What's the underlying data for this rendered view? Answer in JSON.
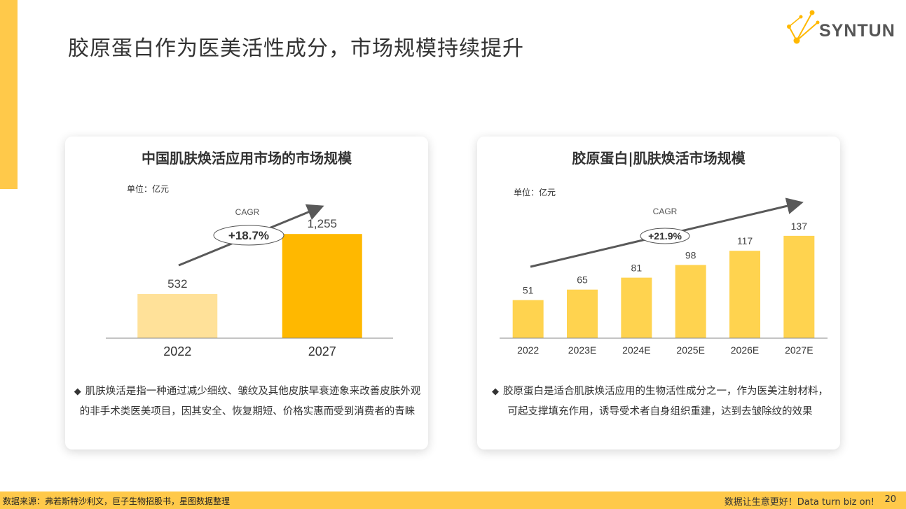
{
  "page": {
    "title": "胶原蛋白作为医美活性成分，市场规模持续提升",
    "logo_text": "SYNTUN"
  },
  "left_card": {
    "chart_data": {
      "type": "bar",
      "title": "中国肌肤焕活应用市场的市场规模",
      "unit": "单位：亿元",
      "categories": [
        "2022",
        "2027"
      ],
      "values": [
        532,
        1255
      ],
      "value_labels": [
        "532",
        "1,255"
      ],
      "colors": [
        "#FFE199",
        "#FFB800"
      ],
      "cagr_label": "CAGR",
      "cagr_value": "+18.7%",
      "ylim": [
        0,
        1400
      ]
    },
    "description": "肌肤焕活是指一种通过减少细纹、皱纹及其他皮肤早衰迹象来改善皮肤外观的非手术类医美项目，因其安全、恢复期短、价格实惠而受到消费者的青睐"
  },
  "right_card": {
    "chart_data": {
      "type": "bar",
      "title": "胶原蛋白|肌肤焕活市场规模",
      "unit": "单位：亿元",
      "categories": [
        "2022",
        "2023E",
        "2024E",
        "2025E",
        "2026E",
        "2027E"
      ],
      "values": [
        51,
        65,
        81,
        98,
        117,
        137
      ],
      "value_labels": [
        "51",
        "65",
        "81",
        "98",
        "117",
        "137"
      ],
      "colors": [
        "#FFD34F"
      ],
      "cagr_label": "CAGR",
      "cagr_value": "+21.9%",
      "ylim": [
        0,
        150
      ]
    },
    "description": "胶原蛋白是适合肌肤焕活应用的生物活性成分之一，作为医美注射材料，可起支撑填充作用，诱导受术者自身组织重建，达到去皱除纹的效果"
  },
  "footer": {
    "source": "数据来源：弗若斯特沙利文，巨子生物招股书，星图数据整理",
    "slogan": "数据让生意更好！Data turn biz on!",
    "page_number": "20"
  },
  "colors": {
    "accent": "#FFC94A",
    "arrow": "#595959"
  }
}
